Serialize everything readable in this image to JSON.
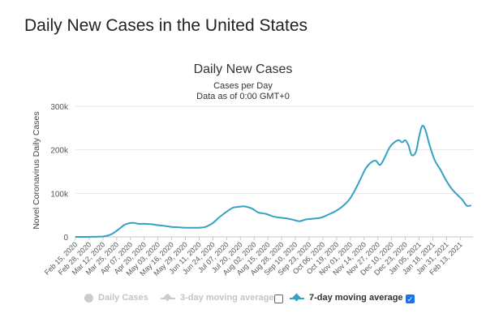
{
  "page": {
    "title": "Daily New Cases in the United States"
  },
  "colors": {
    "series": "#35a1c5",
    "disabled": "#cccccc",
    "checkbox_on": "#1a73e8"
  },
  "legend": {
    "items": [
      {
        "label": "Daily Cases",
        "enabled": false,
        "icon": "circle-icon"
      },
      {
        "label": "3-day moving average",
        "enabled": false,
        "icon": "line-diamond-icon"
      },
      {
        "label": "7-day moving average",
        "enabled": true,
        "icon": "line-diamond-icon"
      }
    ],
    "checkbox_3day_checked": false,
    "checkbox_7day_checked": true
  },
  "chart_data": {
    "type": "line",
    "title": "Daily New Cases",
    "subtitle": "Cases per Day",
    "subtitle2": "Data as of 0:00 GMT+0",
    "xlabel": "",
    "ylabel": "Novel Coronavirus Daily Cases",
    "ylim": [
      0,
      300000
    ],
    "yticks": [
      0,
      100000,
      200000,
      300000
    ],
    "ytick_labels": [
      "0",
      "100k",
      "200k",
      "300k"
    ],
    "xlim": [
      "2020-02-15",
      "2021-02-25"
    ],
    "x_tick_labels": [
      "Feb 15, 2020",
      "Feb 28, 2020",
      "Mar 12, 2020",
      "Mar 25, 2020",
      "Apr 07, 2020",
      "Apr 20, 2020",
      "May 03, 2020",
      "May 16, 2020",
      "May 29, 2020",
      "Jun 11, 2020",
      "Jun 24, 2020",
      "Jul 07, 2020",
      "Jul 20, 2020",
      "Aug 02, 2020",
      "Aug 15, 2020",
      "Aug 28, 2020",
      "Sep 10, 2020",
      "Sep 23, 2020",
      "Oct 06, 2020",
      "Oct 19, 2020",
      "Nov 01, 2020",
      "Nov 14, 2020",
      "Nov 27, 2020",
      "Dec 10, 2020",
      "Dec 23, 2020",
      "Jan 05, 2021",
      "Jan 18, 2021",
      "Jan 31, 2021",
      "Feb 13, 2021"
    ],
    "grid": "horizontal",
    "legend_position": "bottom",
    "series": [
      {
        "name": "7-day moving average",
        "x": [
          "2020-02-15",
          "2020-03-01",
          "2020-03-12",
          "2020-03-19",
          "2020-03-25",
          "2020-04-01",
          "2020-04-05",
          "2020-04-10",
          "2020-04-15",
          "2020-04-20",
          "2020-04-27",
          "2020-05-03",
          "2020-05-10",
          "2020-05-16",
          "2020-05-23",
          "2020-05-29",
          "2020-06-05",
          "2020-06-11",
          "2020-06-17",
          "2020-06-24",
          "2020-06-30",
          "2020-07-07",
          "2020-07-13",
          "2020-07-18",
          "2020-07-24",
          "2020-07-31",
          "2020-08-06",
          "2020-08-13",
          "2020-08-20",
          "2020-08-27",
          "2020-09-03",
          "2020-09-10",
          "2020-09-14",
          "2020-09-20",
          "2020-09-27",
          "2020-10-04",
          "2020-10-11",
          "2020-10-18",
          "2020-10-25",
          "2020-11-01",
          "2020-11-08",
          "2020-11-15",
          "2020-11-20",
          "2020-11-25",
          "2020-11-29",
          "2020-12-03",
          "2020-12-08",
          "2020-12-13",
          "2020-12-17",
          "2020-12-20",
          "2020-12-23",
          "2020-12-26",
          "2020-12-29",
          "2021-01-02",
          "2021-01-05",
          "2021-01-08",
          "2021-01-11",
          "2021-01-15",
          "2021-01-20",
          "2021-01-25",
          "2021-01-31",
          "2021-02-05",
          "2021-02-10",
          "2021-02-15",
          "2021-02-19",
          "2021-02-23"
        ],
        "y": [
          0,
          100,
          1000,
          5000,
          14000,
          27000,
          31000,
          32000,
          30000,
          30000,
          29000,
          27000,
          25000,
          23000,
          22000,
          21000,
          21000,
          21000,
          23000,
          32000,
          45000,
          58000,
          67000,
          69000,
          70000,
          65000,
          56000,
          53000,
          47000,
          44000,
          42000,
          38000,
          36000,
          40000,
          42000,
          44000,
          51000,
          59000,
          71000,
          89000,
          120000,
          155000,
          170000,
          175000,
          165000,
          180000,
          205000,
          218000,
          222000,
          217000,
          222000,
          210000,
          188000,
          195000,
          230000,
          255000,
          245000,
          210000,
          175000,
          155000,
          128000,
          110000,
          97000,
          85000,
          72000,
          72000
        ]
      }
    ]
  }
}
